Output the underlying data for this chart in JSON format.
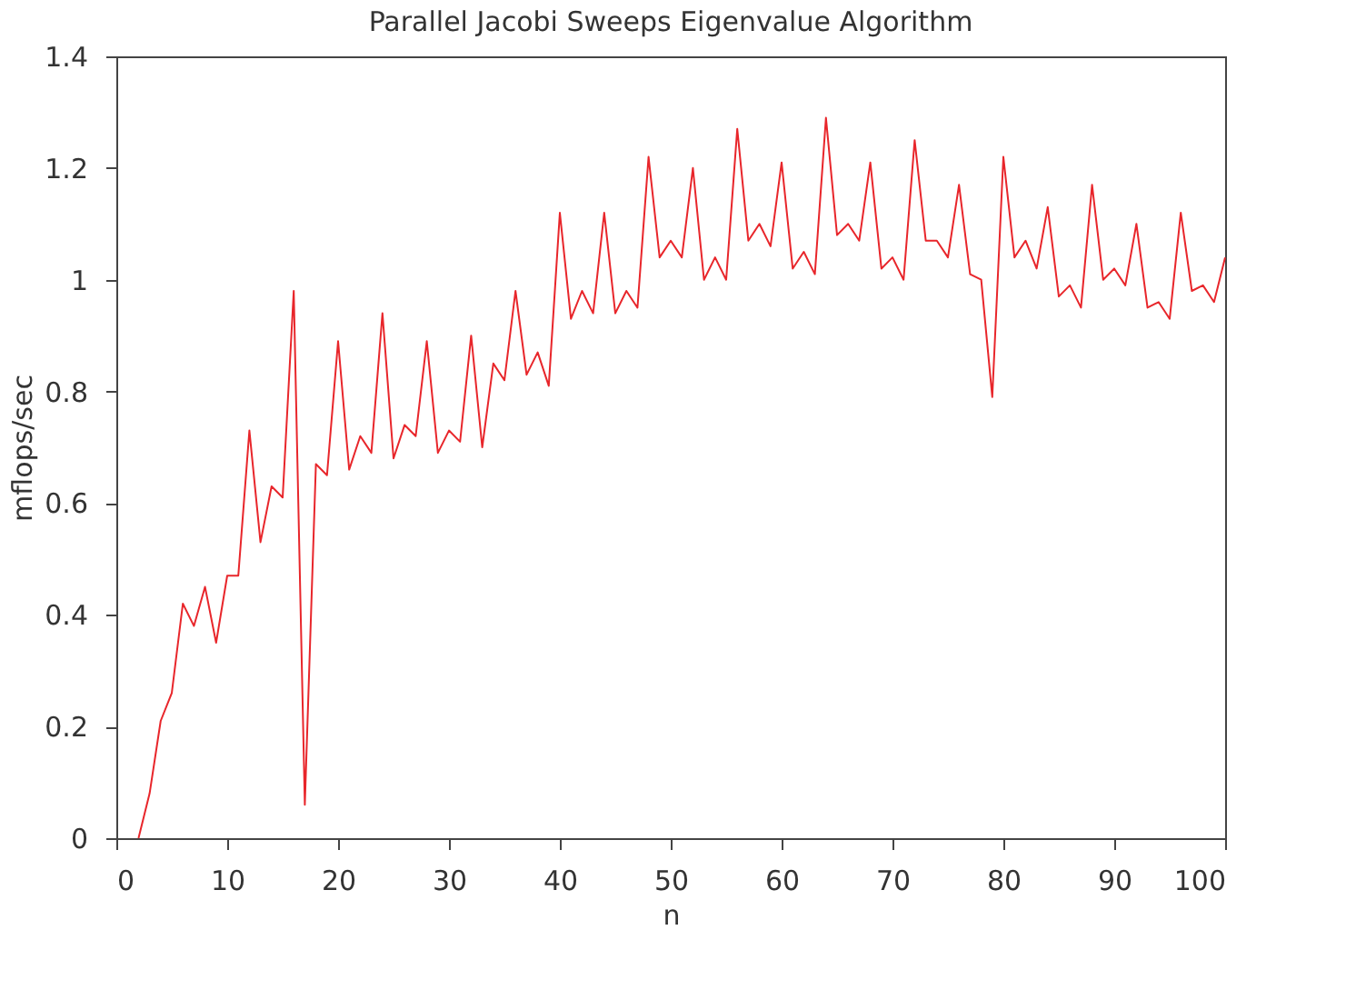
{
  "chart_data": {
    "type": "line",
    "title": "Parallel Jacobi Sweeps Eigenvalue Algorithm",
    "xlabel": "n",
    "ylabel": "mflops/sec",
    "x": [
      2,
      3,
      4,
      5,
      6,
      7,
      8,
      9,
      10,
      11,
      12,
      13,
      14,
      15,
      16,
      17,
      18,
      19,
      20,
      21,
      22,
      23,
      24,
      25,
      26,
      27,
      28,
      29,
      30,
      31,
      32,
      33,
      34,
      35,
      36,
      37,
      38,
      39,
      40,
      41,
      42,
      43,
      44,
      45,
      46,
      47,
      48,
      49,
      50,
      51,
      52,
      53,
      54,
      55,
      56,
      57,
      58,
      59,
      60,
      61,
      62,
      63,
      64,
      65,
      66,
      67,
      68,
      69,
      70,
      71,
      72,
      73,
      74,
      75,
      76,
      77,
      78,
      79,
      80,
      81,
      82,
      83,
      84,
      85,
      86,
      87,
      88,
      89,
      90,
      91,
      92,
      93,
      94,
      95,
      96,
      97,
      98,
      99,
      100
    ],
    "series": [
      {
        "color": "#e8262b",
        "values": [
          0,
          0.08,
          0.21,
          0.26,
          0.42,
          0.38,
          0.45,
          0.35,
          0.47,
          0.47,
          0.73,
          0.53,
          0.63,
          0.61,
          0.98,
          0.06,
          0.67,
          0.65,
          0.89,
          0.66,
          0.72,
          0.69,
          0.94,
          0.68,
          0.74,
          0.72,
          0.89,
          0.69,
          0.73,
          0.71,
          0.9,
          0.7,
          0.85,
          0.82,
          0.98,
          0.83,
          0.87,
          0.81,
          1.12,
          0.93,
          0.98,
          0.94,
          1.12,
          0.94,
          0.98,
          0.95,
          1.22,
          1.04,
          1.07,
          1.04,
          1.2,
          1.0,
          1.04,
          1.0,
          1.27,
          1.07,
          1.1,
          1.06,
          1.21,
          1.02,
          1.05,
          1.01,
          1.29,
          1.08,
          1.1,
          1.07,
          1.21,
          1.02,
          1.04,
          1.0,
          1.25,
          1.07,
          1.07,
          1.04,
          1.17,
          1.01,
          1.0,
          0.79,
          1.22,
          1.04,
          1.07,
          1.02,
          1.13,
          0.97,
          0.99,
          0.95,
          1.17,
          1.0,
          1.02,
          0.99,
          1.1,
          0.95,
          0.96,
          0.93,
          1.12,
          0.98,
          0.99,
          0.96,
          1.04
        ]
      }
    ],
    "xlim": [
      0,
      100
    ],
    "xticks": [
      0,
      10,
      20,
      30,
      40,
      50,
      60,
      70,
      80,
      90,
      100
    ],
    "ylim": [
      0,
      1.4
    ],
    "yticks": [
      0,
      0.2,
      0.4,
      0.6,
      0.8,
      1,
      1.2,
      1.4
    ],
    "grid": false,
    "marker": "none",
    "line_style": "solid"
  }
}
